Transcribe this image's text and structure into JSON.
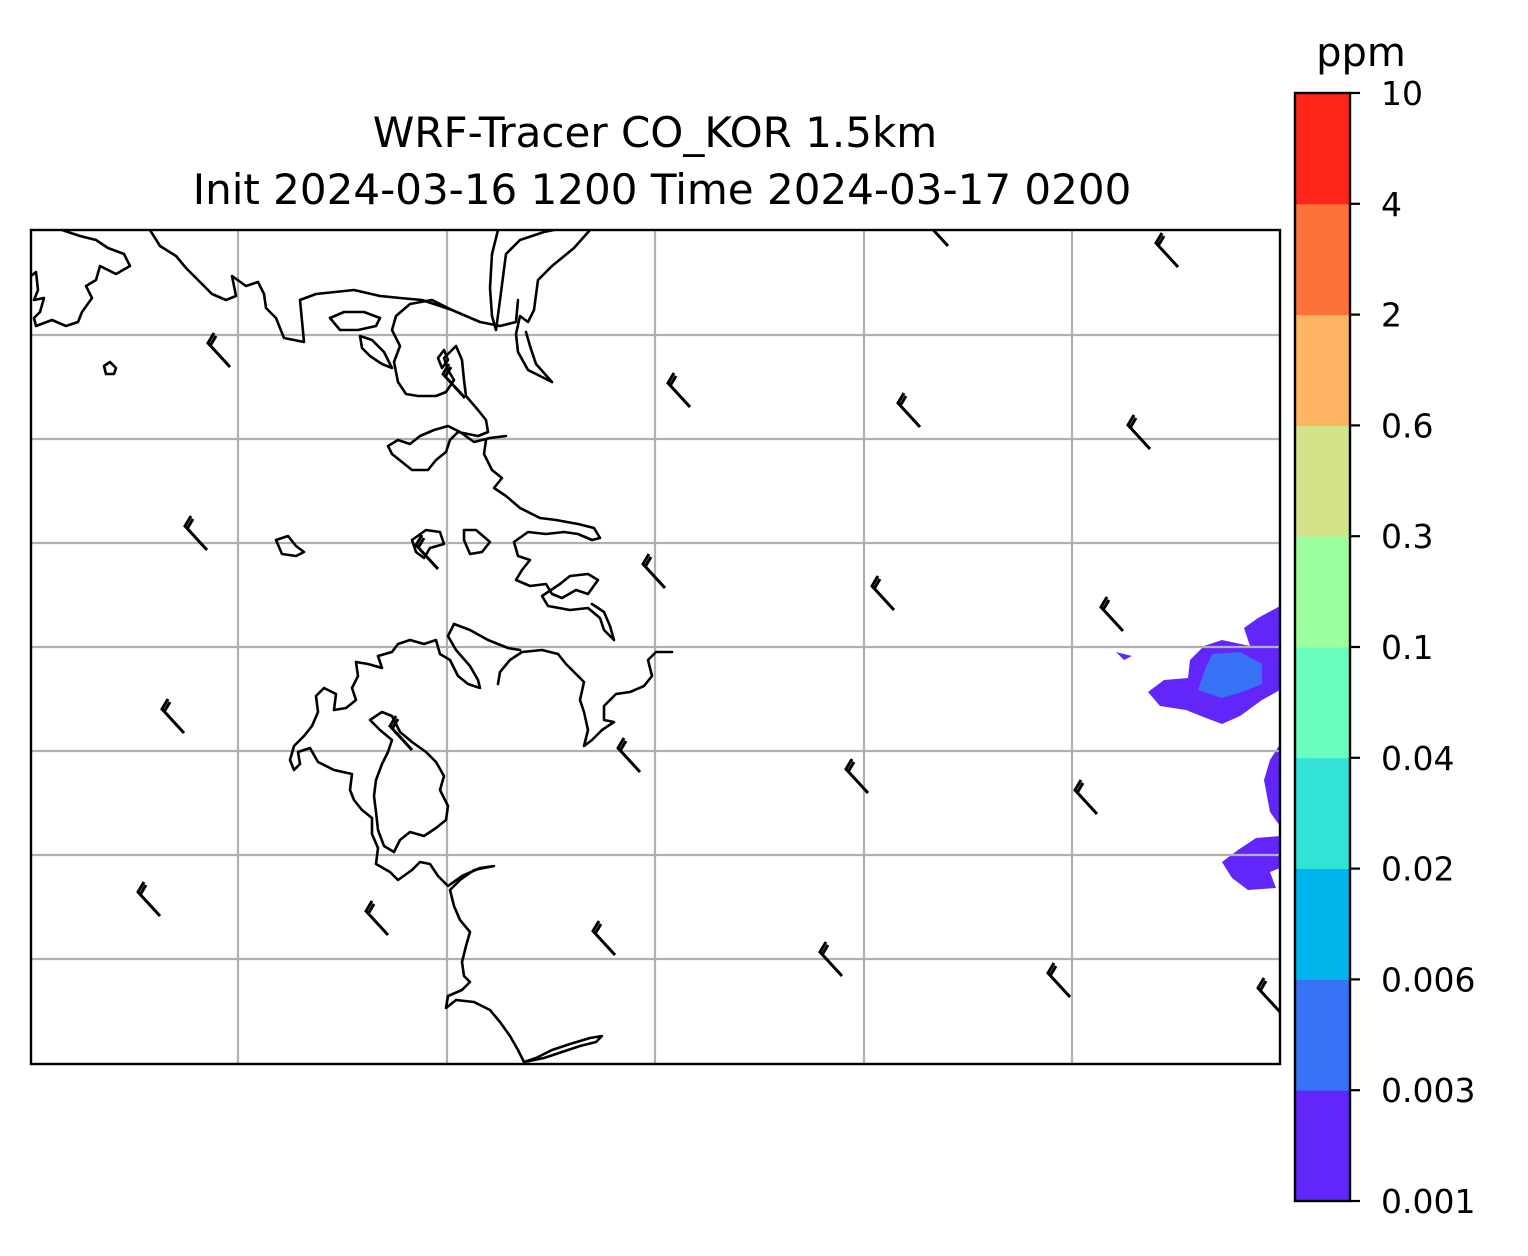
{
  "title": {
    "line1": "WRF-Tracer CO_KOR 1.5km",
    "line2": "Init 2024-03-16 1200 Time 2024-03-17 0200"
  },
  "colorbar": {
    "unit": "ppm",
    "levels": [
      "0.001",
      "0.003",
      "0.006",
      "0.02",
      "0.04",
      "0.1",
      "0.3",
      "0.6",
      "2",
      "4",
      "10"
    ],
    "colors": [
      "#6226fb",
      "#3673f5",
      "#00b4ec",
      "#33e2d6",
      "#6afdbd",
      "#9bfe9f",
      "#d2e38a",
      "#feb462",
      "#fd723a",
      "#ff2519"
    ]
  },
  "map": {
    "gridlines": true,
    "coastline_color": "#000000",
    "gridline_color": "#b0b0b0",
    "wind_barbs": "black"
  }
}
